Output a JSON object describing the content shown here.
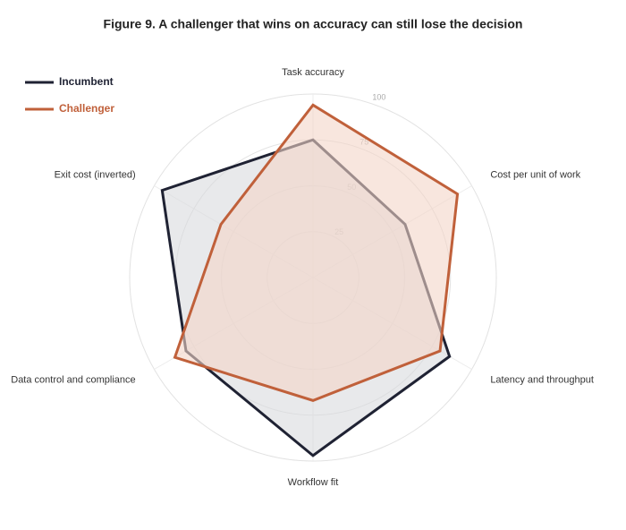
{
  "chart_data": {
    "type": "radar",
    "title": "Figure 9. A challenger that wins on accuracy can still lose the decision",
    "categories": [
      "Task accuracy",
      "Cost per unit of work",
      "Latency and throughput",
      "Workflow fit",
      "Data control and compliance",
      "Exit cost (inverted)"
    ],
    "series": [
      {
        "name": "Incumbent",
        "color": "#1f2233",
        "fill": "#d9dadd",
        "values": [
          75,
          58,
          86,
          97,
          80,
          95
        ]
      },
      {
        "name": "Challenger",
        "color": "#c0603a",
        "fill": "#f3d6c8",
        "values": [
          94,
          91,
          80,
          67,
          87,
          58
        ]
      }
    ],
    "rlim": [
      0,
      100
    ],
    "rticks": [
      25,
      50,
      75,
      100
    ],
    "grid": true,
    "legend": "upper left"
  }
}
